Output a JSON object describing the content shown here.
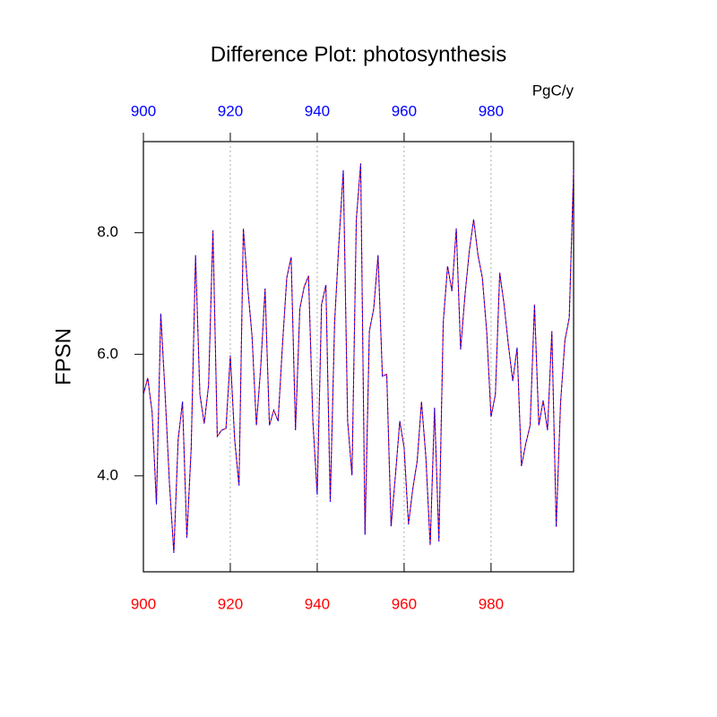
{
  "chart_data": {
    "type": "line",
    "title": "Difference Plot: photosynthesis",
    "units": "PgC/y",
    "ylabel": "FPSN",
    "x": [
      900,
      901,
      902,
      903,
      904,
      905,
      906,
      907,
      908,
      909,
      910,
      911,
      912,
      913,
      914,
      915,
      916,
      917,
      918,
      919,
      920,
      921,
      922,
      923,
      924,
      925,
      926,
      927,
      928,
      929,
      930,
      931,
      932,
      933,
      934,
      935,
      936,
      937,
      938,
      939,
      940,
      941,
      942,
      943,
      944,
      945,
      946,
      947,
      948,
      949,
      950,
      951,
      952,
      953,
      954,
      955,
      956,
      957,
      958,
      959,
      960,
      961,
      962,
      963,
      964,
      965,
      966,
      967,
      968,
      969,
      970,
      971,
      972,
      973,
      974,
      975,
      976,
      977,
      978,
      979,
      980,
      981,
      982,
      983,
      984,
      985,
      986,
      987,
      988,
      989,
      990,
      991,
      992,
      993,
      994,
      995,
      996,
      997,
      998,
      999
    ],
    "series": [
      {
        "color": "#ff0000",
        "dashed": false,
        "values": [
          5.34,
          5.61,
          5.05,
          3.53,
          6.67,
          5.34,
          3.87,
          2.73,
          4.6,
          5.22,
          2.98,
          4.46,
          7.63,
          5.34,
          4.86,
          5.49,
          8.04,
          4.65,
          4.75,
          4.78,
          5.98,
          4.6,
          3.84,
          8.07,
          7.11,
          6.3,
          4.83,
          5.79,
          7.08,
          4.83,
          5.08,
          4.9,
          6.15,
          7.26,
          7.6,
          4.75,
          6.75,
          7.11,
          7.29,
          4.9,
          3.69,
          6.82,
          7.14,
          3.57,
          6.52,
          7.85,
          9.03,
          4.9,
          4.01,
          8.22,
          9.14,
          3.03,
          6.38,
          6.75,
          7.63,
          5.64,
          5.67,
          3.17,
          4.01,
          4.9,
          4.46,
          3.2,
          3.79,
          4.24,
          5.22,
          4.31,
          2.86,
          5.12,
          2.92,
          6.52,
          7.45,
          7.04,
          8.07,
          6.08,
          6.97,
          7.7,
          8.22,
          7.63,
          7.26,
          6.38,
          4.97,
          5.34,
          7.34,
          6.82,
          6.15,
          5.56,
          6.11,
          4.16,
          4.53,
          4.83,
          6.82,
          4.83,
          5.24,
          4.75,
          6.38,
          3.16,
          5.2,
          6.23,
          6.6,
          9.03
        ]
      },
      {
        "color": "#0000ff",
        "dashed": true,
        "values": [
          5.34,
          5.61,
          5.05,
          3.53,
          6.67,
          5.34,
          3.87,
          2.73,
          4.6,
          5.22,
          2.98,
          4.46,
          7.63,
          5.34,
          4.86,
          5.49,
          8.04,
          4.65,
          4.75,
          4.78,
          5.98,
          4.6,
          3.84,
          8.07,
          7.11,
          6.3,
          4.83,
          5.79,
          7.08,
          4.83,
          5.08,
          4.9,
          6.15,
          7.26,
          7.6,
          4.75,
          6.75,
          7.11,
          7.29,
          4.9,
          3.69,
          6.82,
          7.14,
          3.57,
          6.52,
          7.85,
          9.03,
          4.9,
          4.01,
          8.22,
          9.14,
          3.03,
          6.38,
          6.75,
          7.63,
          5.64,
          5.67,
          3.17,
          4.01,
          4.9,
          4.46,
          3.2,
          3.79,
          4.24,
          5.22,
          4.31,
          2.86,
          5.12,
          2.92,
          6.52,
          7.45,
          7.04,
          8.07,
          6.08,
          6.97,
          7.7,
          8.22,
          7.63,
          7.26,
          6.38,
          4.97,
          5.34,
          7.34,
          6.82,
          6.15,
          5.56,
          6.11,
          4.16,
          4.53,
          4.83,
          6.82,
          4.83,
          5.24,
          4.75,
          6.38,
          3.16,
          5.2,
          6.23,
          6.6,
          9.03
        ]
      }
    ],
    "xlim": [
      900,
      999
    ],
    "xticks": [
      900,
      920,
      940,
      960,
      980
    ],
    "ylim": [
      2.42,
      9.5
    ],
    "yticks": [
      {
        "value": 4,
        "label": "4.0"
      },
      {
        "value": 6,
        "label": "6.0"
      },
      {
        "value": 8,
        "label": "8.0"
      }
    ],
    "x_grid": true,
    "bottom_tick_color": "#ff0000",
    "top_tick_color": "#0000ff"
  }
}
